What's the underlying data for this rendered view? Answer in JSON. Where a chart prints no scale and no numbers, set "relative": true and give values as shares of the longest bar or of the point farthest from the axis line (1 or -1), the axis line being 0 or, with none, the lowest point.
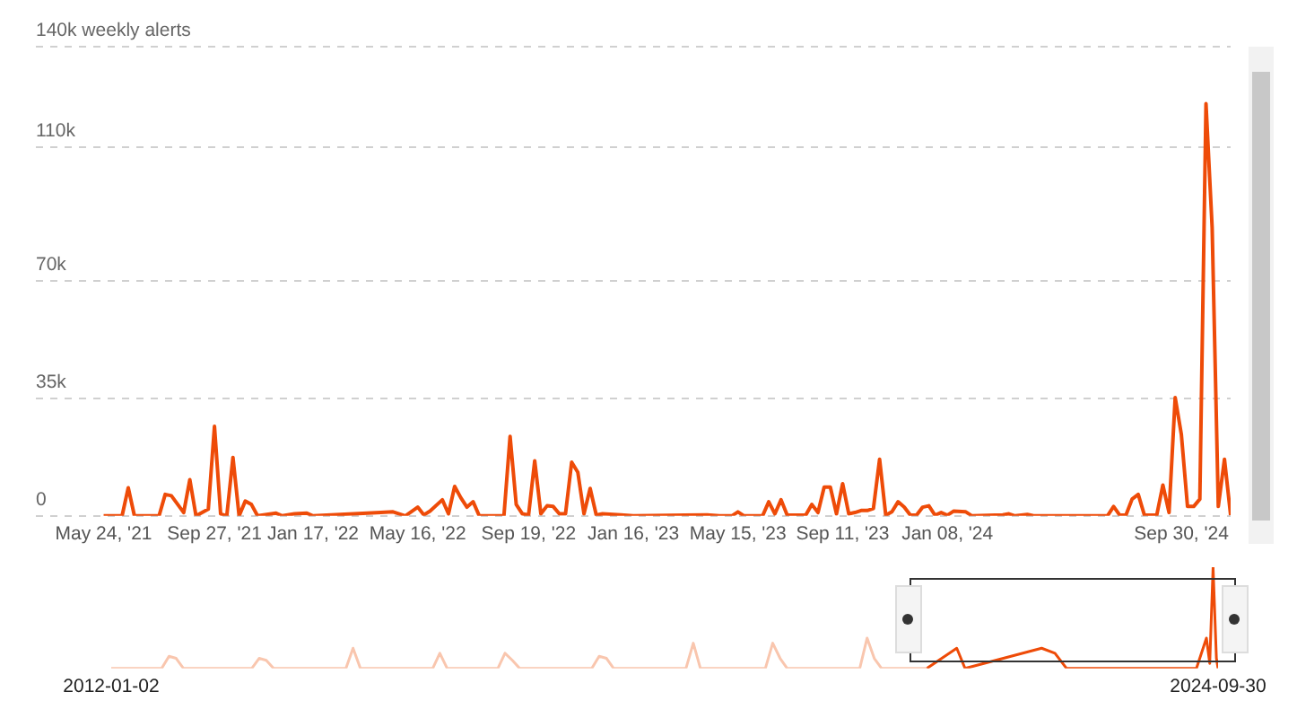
{
  "chart_data": [
    {
      "type": "line",
      "color": "#ee4b08",
      "grid": "y",
      "legend": false,
      "marker": "none",
      "line_style": "solid",
      "x": [
        "2021-05-24",
        "2021-06-14",
        "2021-06-21",
        "2021-06-28",
        "2021-07-26",
        "2021-08-02",
        "2021-08-09",
        "2021-08-23",
        "2021-08-30",
        "2021-09-06",
        "2021-09-20",
        "2021-09-27",
        "2021-10-04",
        "2021-10-11",
        "2021-10-18",
        "2021-10-25",
        "2021-11-01",
        "2021-11-08",
        "2021-11-15",
        "2021-12-06",
        "2021-12-13",
        "2021-12-27",
        "2022-01-10",
        "2022-01-17",
        "2022-04-04",
        "2022-04-18",
        "2022-05-02",
        "2022-05-16",
        "2022-05-23",
        "2022-05-30",
        "2022-06-13",
        "2022-06-20",
        "2022-06-27",
        "2022-07-04",
        "2022-07-11",
        "2022-07-18",
        "2022-07-25",
        "2022-08-22",
        "2022-08-29",
        "2022-09-05",
        "2022-09-12",
        "2022-09-19",
        "2022-09-26",
        "2022-10-03",
        "2022-10-10",
        "2022-10-17",
        "2022-10-24",
        "2022-10-31",
        "2022-11-07",
        "2022-11-14",
        "2022-11-21",
        "2022-11-28",
        "2022-12-05",
        "2022-12-12",
        "2023-01-02",
        "2023-01-16",
        "2023-04-10",
        "2023-04-24",
        "2023-05-08",
        "2023-05-15",
        "2023-05-22",
        "2023-06-12",
        "2023-06-19",
        "2023-06-26",
        "2023-07-03",
        "2023-07-10",
        "2023-07-31",
        "2023-08-07",
        "2023-08-14",
        "2023-08-21",
        "2023-08-28",
        "2023-09-04",
        "2023-09-11",
        "2023-09-18",
        "2023-09-25",
        "2023-10-02",
        "2023-10-09",
        "2023-10-16",
        "2023-10-23",
        "2023-10-30",
        "2023-11-06",
        "2023-11-13",
        "2023-11-20",
        "2023-11-27",
        "2023-12-04",
        "2023-12-11",
        "2023-12-18",
        "2023-12-25",
        "2024-01-01",
        "2024-01-08",
        "2024-01-15",
        "2024-01-29",
        "2024-02-05",
        "2024-03-11",
        "2024-03-18",
        "2024-03-25",
        "2024-04-08",
        "2024-04-15",
        "2024-07-08",
        "2024-07-15",
        "2024-07-22",
        "2024-07-29",
        "2024-08-05",
        "2024-08-12",
        "2024-08-19",
        "2024-09-02",
        "2024-09-09",
        "2024-09-16",
        "2024-09-23",
        "2024-09-30",
        "2024-10-07",
        "2024-10-14",
        "2024-10-21",
        "2024-10-28",
        "2024-11-04",
        "2024-11-11",
        "2024-11-18",
        "2024-11-25"
      ],
      "values": [
        0,
        0,
        8400,
        0,
        0,
        6400,
        6000,
        1000,
        10800,
        0,
        2000,
        26700,
        600,
        0,
        17400,
        0,
        4400,
        3400,
        0,
        800,
        0,
        600,
        800,
        0,
        1000,
        1200,
        0,
        2600,
        300,
        1400,
        4800,
        600,
        8800,
        5400,
        2600,
        4200,
        0,
        0,
        23700,
        3400,
        600,
        200,
        16400,
        600,
        3000,
        2800,
        600,
        600,
        16000,
        13000,
        600,
        8200,
        200,
        600,
        300,
        0,
        300,
        0,
        0,
        1200,
        0,
        0,
        4200,
        600,
        4800,
        200,
        200,
        3400,
        1000,
        8600,
        8600,
        600,
        9600,
        600,
        1000,
        1600,
        1600,
        2200,
        16900,
        200,
        1200,
        4200,
        2600,
        200,
        200,
        2600,
        3000,
        200,
        1000,
        200,
        1400,
        1200,
        0,
        300,
        600,
        0,
        400,
        0,
        0,
        2800,
        200,
        200,
        5000,
        6400,
        200,
        200,
        9200,
        1000,
        35300,
        24300,
        2800,
        2800,
        5000,
        123000,
        86000,
        2800,
        16900,
        200
      ],
      "xlim": [
        "2021-03-08",
        "2024-11-25"
      ],
      "xticks": [
        {
          "value": "2021-05-24",
          "label": "May 24, '21"
        },
        {
          "value": "2021-09-27",
          "label": "Sep 27, '21"
        },
        {
          "value": "2022-01-17",
          "label": "Jan 17, '22"
        },
        {
          "value": "2022-05-16",
          "label": "May 16, '22"
        },
        {
          "value": "2022-09-19",
          "label": "Sep 19, '22"
        },
        {
          "value": "2023-01-16",
          "label": "Jan 16, '23"
        },
        {
          "value": "2023-05-15",
          "label": "May 15, '23"
        },
        {
          "value": "2023-09-11",
          "label": "Sep 11, '23"
        },
        {
          "value": "2024-01-08",
          "label": "Jan 08, '24"
        },
        {
          "value": "2024-09-30",
          "label": "Sep 30, '24"
        }
      ],
      "ylim": [
        0,
        140000
      ],
      "yticks": [
        {
          "value": 0,
          "label": "0"
        },
        {
          "value": 35000,
          "label": "35k"
        },
        {
          "value": 70000,
          "label": "70k"
        },
        {
          "value": 110000,
          "label": "110k"
        },
        {
          "value": 140000,
          "label": "140k weekly alerts"
        }
      ]
    },
    {
      "type": "line",
      "relative": true,
      "grid": false,
      "legend": false,
      "marker": "none",
      "tick_labels": "x",
      "xlim": [
        "2012-01-02",
        "2024-09-30"
      ],
      "xticks": [
        {
          "value": "2012-01-02",
          "label": "2012-01-02"
        },
        {
          "value": "2024-09-30",
          "label": "2024-09-30"
        }
      ],
      "series": [
        {
          "color": "#f9c6ae",
          "x": [
            "2012-01-02",
            "2012-08-01",
            "2012-09-01",
            "2012-10-01",
            "2012-11-01",
            "2013-08-15",
            "2013-09-15",
            "2013-10-15",
            "2013-11-15",
            "2014-09-15",
            "2014-10-15",
            "2014-11-15",
            "2015-09-15",
            "2015-10-15",
            "2015-11-15",
            "2016-06-15",
            "2016-07-15",
            "2016-08-15",
            "2016-09-15",
            "2017-07-15",
            "2017-08-15",
            "2017-09-15",
            "2017-10-15",
            "2018-08-15",
            "2018-09-15",
            "2018-10-15",
            "2019-07-15",
            "2019-08-15",
            "2019-09-15",
            "2019-10-15",
            "2020-08-15",
            "2020-09-15",
            "2020-10-15",
            "2020-11-15",
            "2021-05-24"
          ],
          "values": [
            0,
            0,
            0.12,
            0.1,
            0,
            0,
            0.1,
            0.08,
            0,
            0,
            0.2,
            0,
            0,
            0.15,
            0,
            0,
            0.15,
            0.08,
            0,
            0,
            0.12,
            0.1,
            0,
            0,
            0.25,
            0,
            0,
            0.25,
            0.1,
            0,
            0,
            0.3,
            0.1,
            0,
            0
          ]
        },
        {
          "color": "#ee4b08",
          "x": [
            "2021-05-24",
            "2021-09-27",
            "2021-11-01",
            "2022-09-19",
            "2022-11-14",
            "2023-01-02",
            "2024-07-01",
            "2024-08-12",
            "2024-08-26",
            "2024-09-09",
            "2024-09-23",
            "2024-09-30"
          ],
          "values": [
            0,
            0.2,
            0,
            0.2,
            0.15,
            0,
            0,
            0.3,
            0.05,
            1,
            0.1,
            0
          ]
        }
      ]
    }
  ]
}
